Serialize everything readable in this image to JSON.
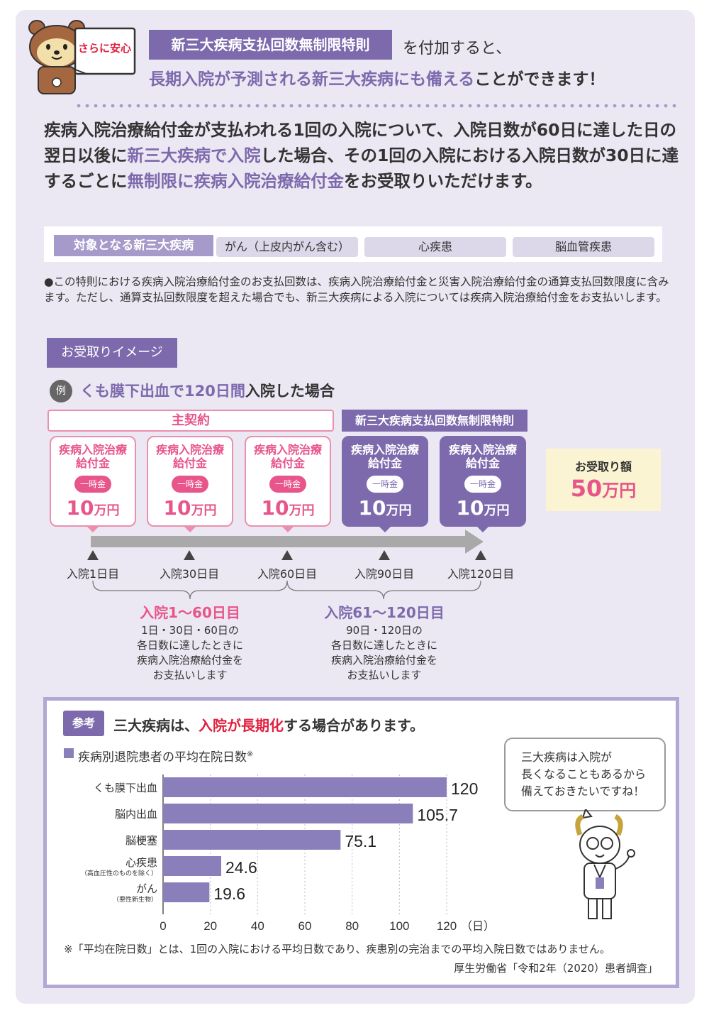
{
  "header": {
    "badge_text": "さらに安心",
    "tag": "新三大疾病支払回数無制限特則",
    "line1_suffix": "を付加すると、",
    "line2_highlight": "長期入院が予測される新三大疾病にも備える",
    "line2_suffix": "ことができます！"
  },
  "intro": {
    "p1": "疾病入院治療給付金が支払われる1回の入院について、入院日数が60日に達した日の翌日以後に",
    "h1": "新三大疾病で入院",
    "p2": "した場合、その1回の入院における入院日数が30日に達するごとに",
    "h2": "無制限に疾病入院治療給付金",
    "p3": "をお受取りいただけます。"
  },
  "targets": {
    "label": "対象となる新三大疾病",
    "items": [
      "がん（上皮内がん含む）",
      "心疾患",
      "脳血管疾患"
    ]
  },
  "note": "●この特則における疾病入院治療給付金のお支払回数は、疾病入院治療給付金と災害入院治療給付金の通算支払回数限度に含みます。ただし、通算支払回数限度を超えた場合でも、新三大疾病による入院については疾病入院治療給付金をお支払いします。",
  "image_section": {
    "tag": "お受取りイメージ",
    "example_badge": "例",
    "example_highlight": "くも膜下出血で120日間",
    "example_suffix": "入院した場合",
    "main_contract": "主契約",
    "rider": "新三大疾病支払回数無制限特則",
    "cards": [
      {
        "title": "疾病入院治療給付金",
        "pill": "一時金",
        "amount": "10",
        "unit": "万円",
        "style": "pink"
      },
      {
        "title": "疾病入院治療給付金",
        "pill": "一時金",
        "amount": "10",
        "unit": "万円",
        "style": "pink"
      },
      {
        "title": "疾病入院治療給付金",
        "pill": "一時金",
        "amount": "10",
        "unit": "万円",
        "style": "pink"
      },
      {
        "title": "疾病入院治療給付金",
        "pill": "一時金",
        "amount": "10",
        "unit": "万円",
        "style": "purple"
      },
      {
        "title": "疾病入院治療給付金",
        "pill": "一時金",
        "amount": "10",
        "unit": "万円",
        "style": "purple"
      }
    ],
    "total_label": "お受取り額",
    "total_amount": "50",
    "total_unit": "万円",
    "ticks": [
      "入院1日目",
      "入院30日目",
      "入院60日目",
      "入院90日目",
      "入院120日目"
    ],
    "range1_title": "入院1～60日目",
    "range1_desc": [
      "1日・30日・60日の",
      "各日数に達したときに",
      "疾病入院治療給付金を",
      "お支払いします"
    ],
    "range2_title": "入院61～120日目",
    "range2_desc": [
      "90日・120日の",
      "各日数に達したときに",
      "疾病入院治療給付金を",
      "お支払いします"
    ]
  },
  "reference": {
    "badge": "参考",
    "title_prefix": "三大疾病は、",
    "title_highlight": "入院が長期化",
    "title_suffix": "する場合があります。",
    "chart_title": "疾病別退院患者の平均在院日数",
    "chart_title_mark": "※",
    "bubble": [
      "三大疾病は入院が",
      "長くなることもあるから",
      "備えておきたいですね！"
    ],
    "footnote": "※「平均在院日数」とは、1回の入院における平均日数であり、疾患別の完治までの平均入院日数ではありません。",
    "source": "厚生労働省「令和2年（2020）患者調査」"
  },
  "chart_data": {
    "type": "bar",
    "orientation": "horizontal",
    "title": "疾病別退院患者の平均在院日数※",
    "categories": [
      "くも膜下出血",
      "脳内出血",
      "脳梗塞",
      "心疾患",
      "がん"
    ],
    "category_sublabels": [
      "",
      "",
      "",
      "（高血圧性のものを除く）",
      "（悪性新生物）"
    ],
    "values": [
      120,
      105.7,
      75.1,
      24.6,
      19.6
    ],
    "value_labels": [
      "120",
      "105.7",
      "75.1",
      "24.6",
      "19.6"
    ],
    "xlim": [
      0,
      120
    ],
    "xticks": [
      "0",
      "20",
      "40",
      "60",
      "80",
      "100",
      "120"
    ],
    "x_unit": "（日）",
    "grid": "vertical dotted",
    "bar_color": "#8b7fbb"
  },
  "colors": {
    "purple": "#7d6aad",
    "pink": "#e8558a",
    "background": "#ece8f3"
  }
}
